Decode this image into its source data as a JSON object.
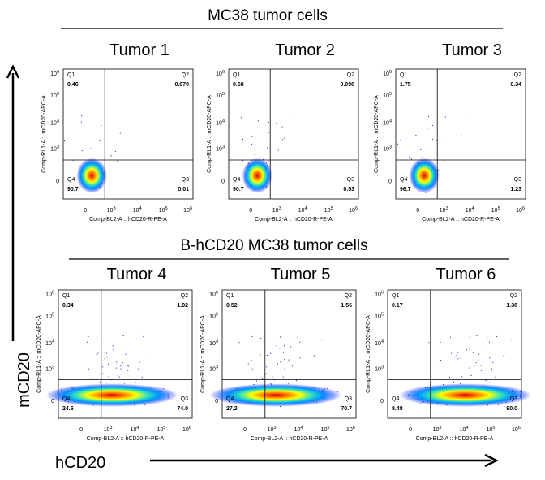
{
  "groups": [
    {
      "title": "MC38 tumor cells",
      "panels": [
        {
          "title": "Tumor 1",
          "q1": "0.46",
          "q2": "0.070",
          "q3": "0.01",
          "q4": "90.7"
        },
        {
          "title": "Tumor 2",
          "q1": "0.68",
          "q2": "0.098",
          "q3": "0.53",
          "q4": "90.7"
        },
        {
          "title": "Tumor 3",
          "q1": "1.75",
          "q2": "0.34",
          "q3": "1.23",
          "q4": "96.7"
        }
      ]
    },
    {
      "title": "B-hCD20 MC38 tumor cells",
      "panels": [
        {
          "title": "Tumor 4",
          "q1": "0.34",
          "q2": "1.02",
          "q3": "74.0",
          "q4": "24.6"
        },
        {
          "title": "Tumor 5",
          "q1": "0.52",
          "q2": "1.56",
          "q3": "70.7",
          "q4": "27.2"
        },
        {
          "title": "Tumor 6",
          "q1": "0.17",
          "q2": "1.38",
          "q3": "90.0",
          "q4": "8.48"
        }
      ]
    }
  ],
  "quadrant_names": [
    "Q1",
    "Q2",
    "Q3",
    "Q4"
  ],
  "x_axis_caption": "Comp-BL2-A :: hCD20-R-PE-A",
  "y_axis_caption": "Comp-RL1-A :: mCD20-APC-A",
  "tick_zero": "0",
  "tick_base": "10",
  "tick_exponents": [
    "3",
    "4",
    "5",
    "6"
  ],
  "y_marker": "mCD20",
  "x_marker": "hCD20"
}
